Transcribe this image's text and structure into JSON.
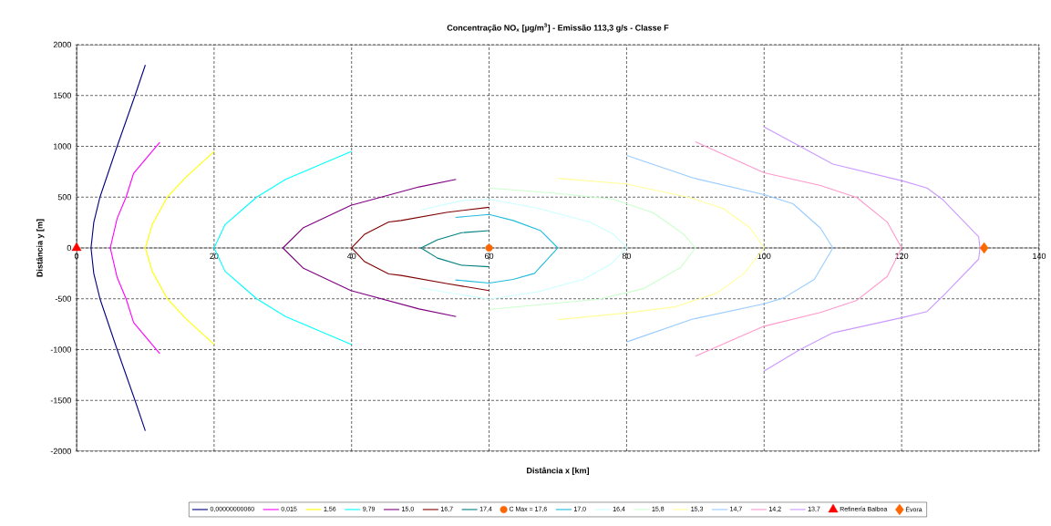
{
  "chart_data": {
    "type": "line",
    "title": "Concentração NO$_{x}$ [µg/m$^{3}$] - Emissão 113,3 g/s  - Classe F",
    "xlabel": "Distância x [km]",
    "ylabel": "Distância y [m]",
    "xlim": [
      0,
      140
    ],
    "xticks": [
      0,
      20,
      40,
      60,
      80,
      100,
      120,
      140
    ],
    "ylim": [
      -2000,
      2000
    ],
    "yticks": [
      -2000,
      -1500,
      -1000,
      -500,
      0,
      500,
      1000,
      1500,
      2000
    ],
    "grid": true,
    "legend": "bottom",
    "series": [
      {
        "name": "0,00000000060",
        "color": "#000080",
        "x": [
          10,
          8.5,
          5.9,
          3.4,
          2.5,
          2.1,
          2.5,
          3.4,
          5.9,
          8.5,
          10
        ],
        "values": [
          1800,
          1500,
          1000,
          500,
          250,
          0,
          -250,
          -500,
          -1000,
          -1500,
          -1800
        ]
      },
      {
        "name": "0,015",
        "color": "#ff00ff",
        "x": [
          12.1,
          8.3,
          7.2,
          5.9,
          4.9,
          5.9,
          7.2,
          8.3,
          12.1
        ],
        "values": [
          1040,
          735,
          500,
          290,
          0,
          -290,
          -500,
          -735,
          -1040
        ]
      },
      {
        "name": "1,56",
        "color": "#ffff00",
        "x": [
          20,
          15.8,
          13.2,
          11,
          10,
          11,
          13.2,
          15.8,
          20
        ],
        "values": [
          950,
          690,
          500,
          230,
          0,
          -230,
          -500,
          -690,
          -950
        ]
      },
      {
        "name": "9,79",
        "color": "#00ffff",
        "x": [
          40,
          30.4,
          26.2,
          21.6,
          20,
          21.6,
          26.2,
          30.4,
          40
        ],
        "values": [
          950,
          675,
          500,
          230,
          0,
          -230,
          -500,
          -675,
          -950
        ]
      },
      {
        "name": "15,0",
        "color": "#800080",
        "x": [
          55.2,
          49.8,
          39.9,
          33,
          30,
          33,
          39.9,
          49.8,
          55.2
        ],
        "values": [
          675,
          600,
          420,
          200,
          0,
          -200,
          -420,
          -600,
          -675
        ]
      },
      {
        "name": "16,7",
        "color": "#800000",
        "x": [
          60,
          53.8,
          47.2,
          45.4,
          41.9,
          40,
          41.9,
          45.4,
          47.2,
          53.8,
          60
        ],
        "values": [
          400,
          350,
          270,
          255,
          135,
          0,
          -135,
          -255,
          -270,
          -350,
          -420
        ]
      },
      {
        "name": "17,4",
        "color": "#008080",
        "x": [
          60,
          56,
          52.5,
          50.1,
          52.5,
          56,
          60
        ],
        "values": [
          170,
          150,
          80,
          0,
          -100,
          -170,
          -185
        ]
      },
      {
        "name": "C Max = 17,6",
        "type": "scatter",
        "marker": "circle",
        "color": "#ff6600",
        "x": [
          60
        ],
        "values": [
          0
        ]
      },
      {
        "name": "17,0",
        "color": "#22bbdd",
        "x": [
          55.1,
          60,
          63.5,
          67.5,
          70,
          66.6,
          63.5,
          60,
          55.1
        ],
        "values": [
          300,
          330,
          270,
          170,
          0,
          -250,
          -310,
          -345,
          -315
        ]
      },
      {
        "name": "16,4",
        "color": "#ccffff",
        "x": [
          50.1,
          56,
          60,
          67.1,
          74.6,
          78.1,
          80,
          77.7,
          73.7,
          67.1,
          60,
          50.1
        ],
        "values": [
          375,
          465,
          480,
          390,
          255,
          135,
          0,
          -160,
          -310,
          -430,
          -505,
          -395
        ]
      },
      {
        "name": "15,8",
        "color": "#ccffcc",
        "x": [
          60,
          69.3,
          78.1,
          83.9,
          88.3,
          90,
          87.9,
          82.5,
          75.9,
          60
        ],
        "values": [
          590,
          540,
          480,
          345,
          135,
          0,
          -190,
          -400,
          -505,
          -605
        ]
      },
      {
        "name": "15,3",
        "color": "#ffff99",
        "x": [
          70,
          79.9,
          89.2,
          94,
          98,
          100,
          97.1,
          93.1,
          87,
          79.9,
          70
        ],
        "values": [
          685,
          630,
          495,
          390,
          195,
          0,
          -250,
          -445,
          -580,
          -640,
          -705
        ]
      },
      {
        "name": "14,7",
        "color": "#99ccff",
        "x": [
          80,
          89.6,
          100,
          104.2,
          108.2,
          110,
          107.3,
          102.9,
          100,
          89.6,
          80
        ],
        "values": [
          910,
          690,
          525,
          435,
          195,
          0,
          -310,
          -490,
          -550,
          -700,
          -925
        ]
      },
      {
        "name": "14,2",
        "color": "#ff99cc",
        "x": [
          90,
          100,
          108.2,
          113.5,
          117.9,
          120,
          117.9,
          113.5,
          108.2,
          100,
          90
        ],
        "values": [
          1045,
          740,
          615,
          495,
          255,
          0,
          -280,
          -515,
          -635,
          -770,
          -1065
        ]
      },
      {
        "name": "13,7",
        "color": "#cc99ff",
        "x": [
          100,
          105.1,
          110,
          120.1,
          123.7,
          125.9,
          131.2,
          131.4,
          131.2,
          125.9,
          123.7,
          120.1,
          110,
          105.1,
          100
        ],
        "values": [
          1190,
          1005,
          825,
          660,
          590,
          480,
          110,
          0,
          -110,
          -480,
          -625,
          -685,
          -835,
          -1005,
          -1210
        ]
      },
      {
        "name": "Refinería Balboa",
        "type": "scatter",
        "marker": "triangle",
        "color": "#ff0000",
        "x": [
          0
        ],
        "values": [
          0
        ]
      },
      {
        "name": "Évora",
        "type": "scatter",
        "marker": "diamond",
        "color": "#ff6600",
        "x": [
          132
        ],
        "values": [
          0
        ]
      }
    ]
  }
}
